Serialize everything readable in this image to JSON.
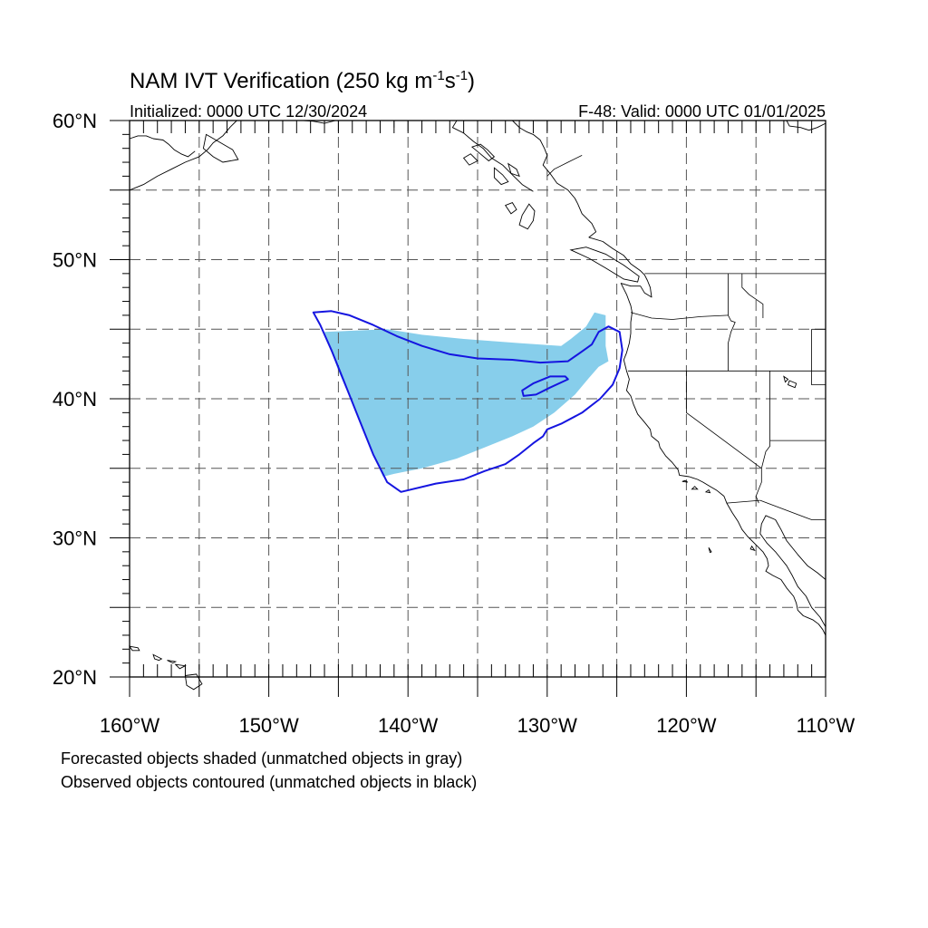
{
  "title": {
    "main": "NAM IVT Verification (250 kg m",
    "exp1": "-1",
    "mid": "s",
    "exp2": "-1",
    "close": ")"
  },
  "subtitle_left": "Initialized: 0000 UTC 12/30/2024",
  "subtitle_right": "F-48: Valid: 0000 UTC 01/01/2025",
  "map": {
    "lon_range": [
      -160,
      -110
    ],
    "lat_range": [
      20,
      60
    ],
    "grid_lon_step": 5,
    "grid_lat_step": 5,
    "grid": true,
    "grid_style": "dashed",
    "lat_labels": [
      "20°N",
      "30°N",
      "40°N",
      "50°N",
      "60°N"
    ],
    "lat_label_values": [
      20,
      30,
      40,
      50,
      60
    ],
    "lon_labels": [
      "160°W",
      "150°W",
      "140°W",
      "130°W",
      "120°W",
      "110°W"
    ],
    "lon_label_values": [
      -160,
      -150,
      -140,
      -130,
      -120,
      -110
    ]
  },
  "colors": {
    "forecast_fill": "#87CEEB",
    "observed_contour": "#1515E0",
    "coastline": "#000000",
    "grid": "#555555"
  },
  "legend": {
    "line1": "Forecasted objects shaded (unmatched objects in gray)",
    "line2": "Observed objects contoured (unmatched objects in black)"
  },
  "forecast_object": {
    "name": "forecast",
    "coords": [
      [
        -146.0,
        44.8
      ],
      [
        -141.5,
        45.0
      ],
      [
        -139.0,
        44.6
      ],
      [
        -136.0,
        44.3
      ],
      [
        -132.0,
        44.0
      ],
      [
        -129.0,
        43.8
      ],
      [
        -128.3,
        44.3
      ],
      [
        -127.2,
        45.2
      ],
      [
        -126.6,
        46.2
      ],
      [
        -125.8,
        46.0
      ],
      [
        -125.8,
        43.8
      ],
      [
        -125.6,
        42.7
      ],
      [
        -126.3,
        42.3
      ],
      [
        -127.0,
        41.5
      ],
      [
        -128.0,
        40.3
      ],
      [
        -129.5,
        39.0
      ],
      [
        -131.0,
        38.0
      ],
      [
        -132.5,
        37.3
      ],
      [
        -134.5,
        36.5
      ],
      [
        -136.5,
        35.7
      ],
      [
        -139.0,
        35.0
      ],
      [
        -141.0,
        34.6
      ],
      [
        -141.8,
        34.4
      ],
      [
        -142.5,
        36.0
      ],
      [
        -143.5,
        38.5
      ],
      [
        -145.0,
        42.0
      ]
    ]
  },
  "observed_objects": [
    {
      "name": "observed-main",
      "coords": [
        [
          -146.8,
          46.2
        ],
        [
          -145.5,
          46.3
        ],
        [
          -144.2,
          46.0
        ],
        [
          -142.5,
          45.3
        ],
        [
          -140.8,
          44.5
        ],
        [
          -139.0,
          43.8
        ],
        [
          -137.0,
          43.2
        ],
        [
          -135.0,
          42.9
        ],
        [
          -132.5,
          42.8
        ],
        [
          -130.5,
          42.6
        ],
        [
          -128.5,
          42.7
        ],
        [
          -127.5,
          43.4
        ],
        [
          -126.8,
          43.9
        ],
        [
          -126.3,
          44.8
        ],
        [
          -125.6,
          45.2
        ],
        [
          -124.8,
          44.8
        ],
        [
          -124.6,
          43.5
        ],
        [
          -124.8,
          42.2
        ],
        [
          -125.3,
          41.0
        ],
        [
          -126.2,
          40.0
        ],
        [
          -127.5,
          39.0
        ],
        [
          -129.0,
          38.2
        ],
        [
          -130.0,
          37.8
        ],
        [
          -130.3,
          37.3
        ],
        [
          -131.0,
          36.8
        ],
        [
          -132.0,
          36.0
        ],
        [
          -133.0,
          35.3
        ],
        [
          -134.5,
          34.8
        ],
        [
          -136.0,
          34.2
        ],
        [
          -138.0,
          33.9
        ],
        [
          -140.5,
          33.3
        ],
        [
          -141.5,
          34.0
        ],
        [
          -142.5,
          36.0
        ],
        [
          -143.5,
          38.5
        ],
        [
          -144.5,
          41.0
        ],
        [
          -145.5,
          43.5
        ],
        [
          -146.3,
          45.3
        ]
      ]
    },
    {
      "name": "observed-inner",
      "coords": [
        [
          -131.8,
          40.6
        ],
        [
          -131.7,
          40.2
        ],
        [
          -130.8,
          40.3
        ],
        [
          -129.8,
          40.8
        ],
        [
          -128.5,
          41.4
        ],
        [
          -128.7,
          41.6
        ],
        [
          -129.8,
          41.6
        ],
        [
          -131.0,
          41.1
        ]
      ]
    }
  ]
}
